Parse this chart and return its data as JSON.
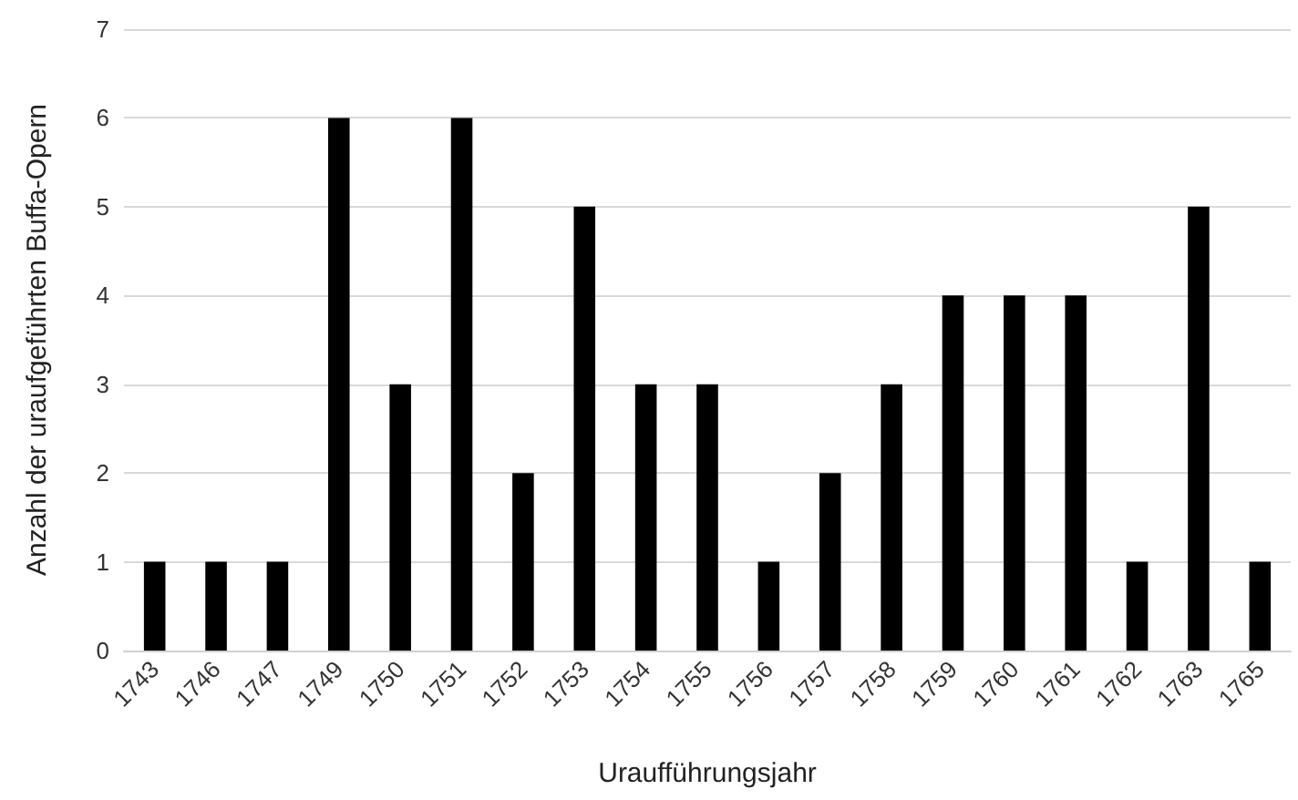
{
  "chart_data": {
    "type": "bar",
    "xlabel": "Uraufführungsjahr",
    "ylabel": "Anzahl der uraufgeführten Buffa-Opern",
    "categories": [
      "1743",
      "1746",
      "1747",
      "1749",
      "1750",
      "1751",
      "1752",
      "1753",
      "1754",
      "1755",
      "1756",
      "1757",
      "1758",
      "1759",
      "1760",
      "1761",
      "1762",
      "1763",
      "1765"
    ],
    "values": [
      1,
      1,
      1,
      6,
      3,
      6,
      2,
      5,
      3,
      3,
      1,
      2,
      3,
      4,
      4,
      4,
      1,
      5,
      1
    ],
    "color": "#000000",
    "ylim": [
      0,
      7
    ],
    "yticks": [
      0,
      1,
      2,
      3,
      4,
      5,
      6,
      7
    ],
    "grid": "y"
  }
}
